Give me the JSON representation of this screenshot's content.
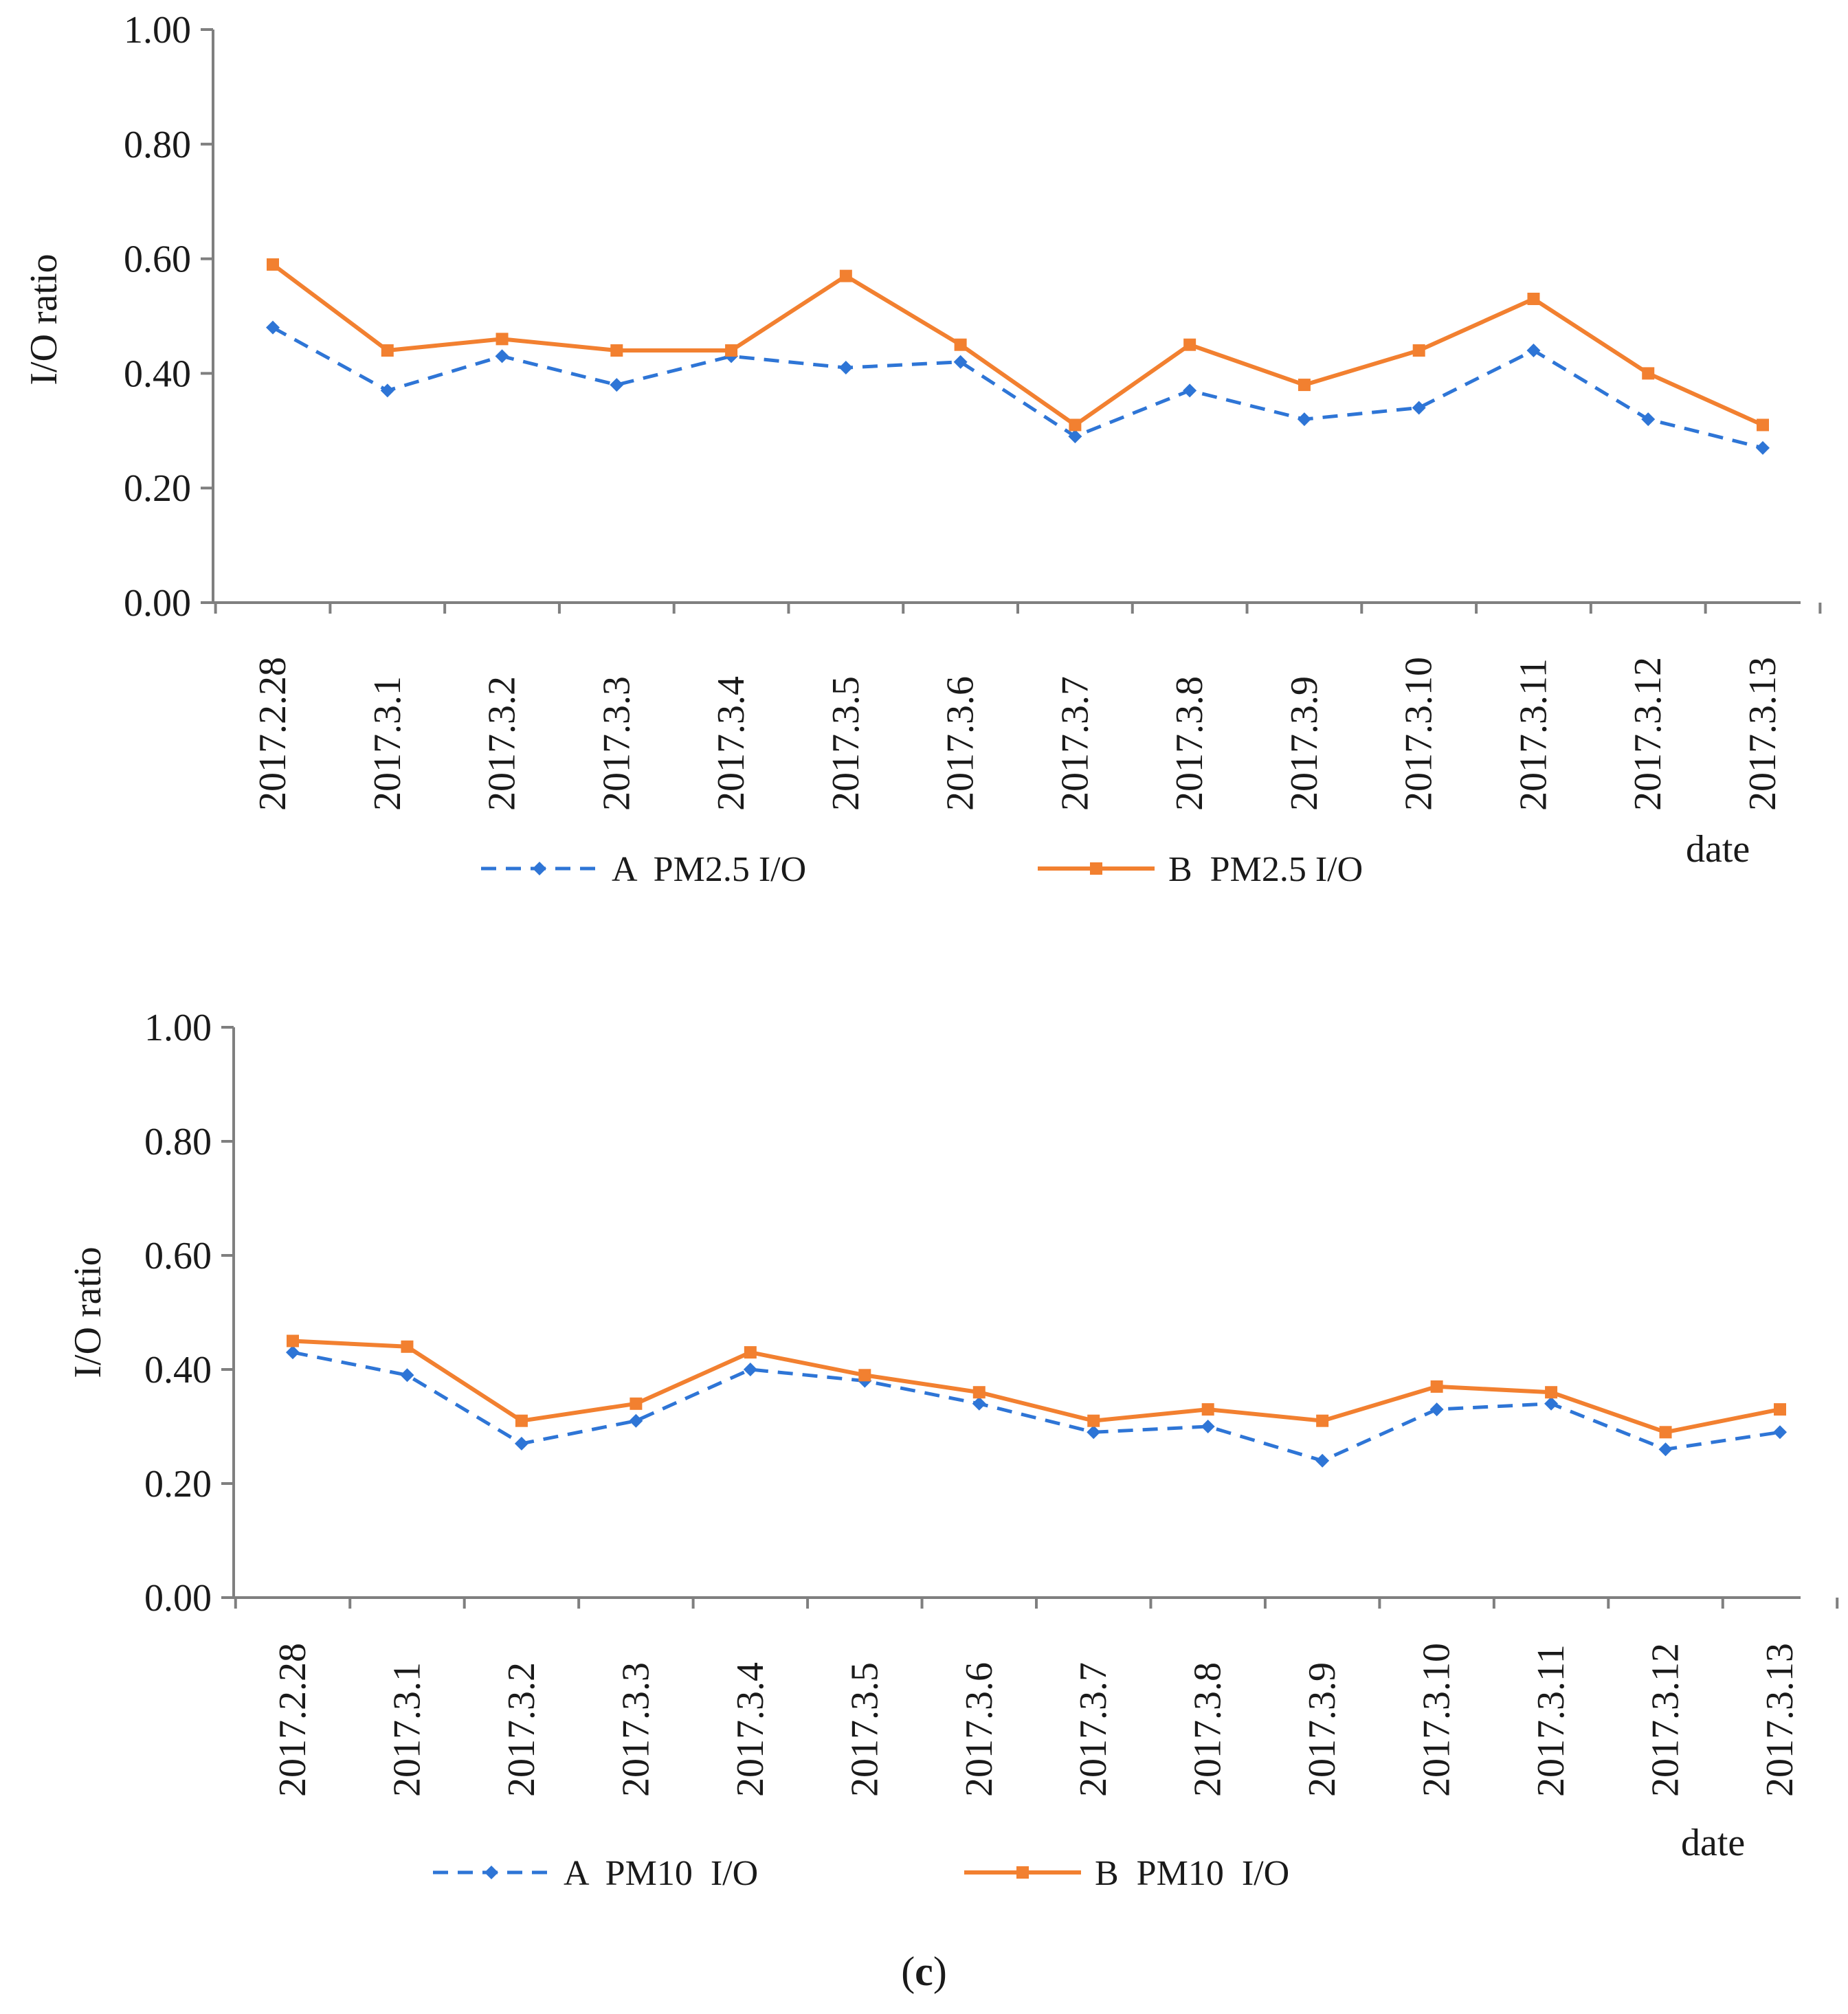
{
  "caption": {
    "open": "(",
    "letter": "c",
    "close": ")"
  },
  "colors": {
    "series_a": "#2E75D6",
    "series_b": "#F28030",
    "axis": "#7f7f7f"
  },
  "chart_data": [
    {
      "type": "line",
      "title": "",
      "xlabel": "date",
      "ylabel": "I/O ratio",
      "ylim": [
        0,
        1
      ],
      "yticks": [
        "0.00",
        "0.20",
        "0.40",
        "0.60",
        "0.80",
        "1.00"
      ],
      "categories": [
        "2017.2.28",
        "2017.3.1",
        "2017.3.2",
        "2017.3.3",
        "2017.3.4",
        "2017.3.5",
        "2017.3.6",
        "2017.3.7",
        "2017.3.8",
        "2017.3.9",
        "2017.3.10",
        "2017.3.11",
        "2017.3.12",
        "2017.3.13"
      ],
      "series": [
        {
          "name": "A  PM2.5 I/O",
          "style": "dashed",
          "values": [
            0.48,
            0.37,
            0.43,
            0.38,
            0.43,
            0.41,
            0.42,
            0.29,
            0.37,
            0.32,
            0.34,
            0.44,
            0.32,
            0.27
          ]
        },
        {
          "name": "B  PM2.5 I/O",
          "style": "solid",
          "values": [
            0.59,
            0.44,
            0.46,
            0.44,
            0.44,
            0.57,
            0.45,
            0.31,
            0.45,
            0.38,
            0.44,
            0.53,
            0.4,
            0.31
          ]
        }
      ]
    },
    {
      "type": "line",
      "title": "",
      "xlabel": "date",
      "ylabel": "I/O ratio",
      "ylim": [
        0,
        1
      ],
      "yticks": [
        "0.00",
        "0.20",
        "0.40",
        "0.60",
        "0.80",
        "1.00"
      ],
      "categories": [
        "2017.2.28",
        "2017.3.1",
        "2017.3.2",
        "2017.3.3",
        "2017.3.4",
        "2017.3.5",
        "2017.3.6",
        "2017.3.7",
        "2017.3.8",
        "2017.3.9",
        "2017.3.10",
        "2017.3.11",
        "2017.3.12",
        "2017.3.13"
      ],
      "series": [
        {
          "name": "A  PM10  I/O",
          "style": "dashed",
          "values": [
            0.43,
            0.39,
            0.27,
            0.31,
            0.4,
            0.38,
            0.34,
            0.29,
            0.3,
            0.24,
            0.33,
            0.34,
            0.26,
            0.29
          ]
        },
        {
          "name": "B  PM10  I/O",
          "style": "solid",
          "values": [
            0.45,
            0.44,
            0.31,
            0.34,
            0.43,
            0.39,
            0.36,
            0.31,
            0.33,
            0.31,
            0.37,
            0.36,
            0.29,
            0.33
          ]
        }
      ]
    }
  ]
}
